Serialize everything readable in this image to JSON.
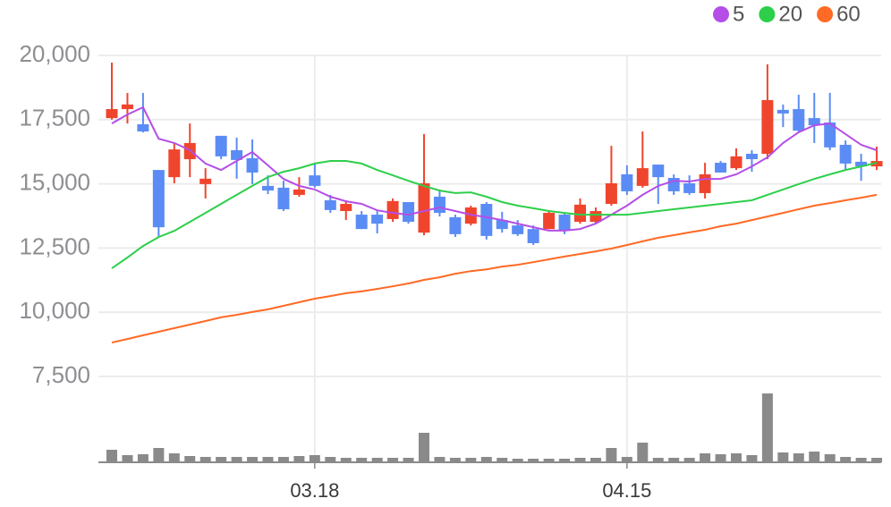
{
  "chart_data": {
    "type": "candlestick",
    "categories": [
      null,
      null,
      null,
      null,
      null,
      null,
      null,
      null,
      null,
      null,
      null,
      null,
      null,
      "03.18",
      null,
      null,
      null,
      null,
      null,
      null,
      null,
      null,
      null,
      null,
      null,
      null,
      null,
      null,
      null,
      null,
      null,
      null,
      null,
      "04.15",
      null,
      null,
      null,
      null,
      null,
      null,
      null,
      null,
      null,
      null,
      null,
      null,
      null,
      null,
      null,
      null
    ],
    "open": [
      17560,
      17910,
      17320,
      15540,
      15260,
      15960,
      14990,
      16870,
      16310,
      16000,
      14920,
      14850,
      14570,
      15330,
      14360,
      13940,
      13800,
      13800,
      13630,
      14290,
      13100,
      14500,
      13700,
      13450,
      14220,
      13590,
      13380,
      13240,
      13240,
      13800,
      13520,
      13520,
      14220,
      15370,
      14920,
      15750,
      15230,
      15020,
      14640,
      15820,
      15610,
      16170,
      16170,
      17880,
      17910,
      17560,
      17390,
      16520,
      15860,
      15680
    ],
    "high": [
      19720,
      18540,
      18540,
      15540,
      16590,
      17350,
      15610,
      16870,
      16800,
      16730,
      15330,
      15120,
      15260,
      15820,
      14570,
      14360,
      13940,
      13940,
      14430,
      14290,
      16940,
      14780,
      13800,
      14150,
      14290,
      13910,
      13590,
      13380,
      13940,
      13870,
      14430,
      14080,
      16480,
      15720,
      17040,
      15750,
      15370,
      15330,
      15820,
      15890,
      16380,
      16310,
      19650,
      18090,
      18470,
      18540,
      18540,
      16690,
      16170,
      16450
    ],
    "low": [
      17500,
      17350,
      17000,
      12930,
      15020,
      15260,
      14430,
      15960,
      15200,
      14990,
      14600,
      13940,
      14500,
      14850,
      13870,
      13590,
      13240,
      13070,
      13520,
      13450,
      13000,
      13730,
      12930,
      13380,
      12830,
      13100,
      12970,
      12620,
      13240,
      13040,
      13450,
      13450,
      14150,
      14570,
      14850,
      14220,
      14570,
      14570,
      14430,
      15440,
      15540,
      15470,
      15960,
      17210,
      17000,
      16590,
      16310,
      15540,
      15120,
      15540
    ],
    "close": [
      17910,
      18090,
      17040,
      13310,
      16340,
      16590,
      15200,
      16070,
      15930,
      15440,
      14740,
      14010,
      14780,
      14920,
      13980,
      14220,
      13240,
      13450,
      14330,
      13520,
      15020,
      13870,
      13040,
      14080,
      12970,
      13240,
      13040,
      12690,
      13870,
      13170,
      14190,
      13940,
      15020,
      14710,
      15610,
      15260,
      14710,
      14640,
      15370,
      15440,
      16070,
      15960,
      18260,
      17740,
      17070,
      17280,
      16420,
      15790,
      15680,
      15890
    ],
    "volume": [
      14,
      8,
      9,
      16,
      10,
      7,
      6,
      6,
      6,
      6,
      6,
      6,
      7,
      8,
      6,
      5,
      5,
      5,
      5,
      5,
      33,
      6,
      5,
      5,
      6,
      5,
      4,
      4,
      4,
      4,
      5,
      5,
      16,
      6,
      22,
      5,
      5,
      5,
      10,
      9,
      10,
      8,
      77,
      11,
      10,
      12,
      9,
      6,
      5,
      5
    ],
    "volume_ylim": [
      0,
      80
    ],
    "up_color": "#f0452d",
    "down_color": "#5b8cf5",
    "volume_color": "#8a8a8a",
    "series": [
      {
        "name": "5",
        "color": "#b44ee6",
        "values": [
          17350,
          17700,
          17980,
          16760,
          16590,
          16310,
          15790,
          15540,
          15890,
          16240,
          15720,
          15190,
          14920,
          14780,
          14500,
          14320,
          14220,
          13970,
          13870,
          13800,
          13940,
          14080,
          13940,
          13800,
          13700,
          13590,
          13450,
          13310,
          13180,
          13180,
          13240,
          13450,
          13800,
          14150,
          14570,
          14920,
          15120,
          15090,
          15190,
          15190,
          15370,
          15680,
          16030,
          16590,
          17010,
          17280,
          17350,
          16940,
          16520,
          16310
        ]
      },
      {
        "name": "20",
        "color": "#2dcf4a",
        "values": [
          11710,
          12130,
          12580,
          12930,
          13170,
          13520,
          13870,
          14220,
          14570,
          14920,
          15260,
          15470,
          15610,
          15790,
          15890,
          15890,
          15790,
          15540,
          15330,
          15120,
          14920,
          14740,
          14640,
          14670,
          14500,
          14290,
          14150,
          14050,
          13940,
          13870,
          13800,
          13800,
          13800,
          13800,
          13870,
          13940,
          14010,
          14080,
          14150,
          14220,
          14290,
          14360,
          14570,
          14780,
          14990,
          15190,
          15370,
          15540,
          15680,
          15820
        ]
      },
      {
        "name": "60",
        "color": "#ff6a24",
        "values": [
          8820,
          8960,
          9100,
          9240,
          9380,
          9520,
          9660,
          9800,
          9900,
          10010,
          10110,
          10250,
          10390,
          10530,
          10630,
          10740,
          10810,
          10910,
          11010,
          11120,
          11260,
          11360,
          11500,
          11600,
          11670,
          11780,
          11850,
          11950,
          12060,
          12170,
          12270,
          12370,
          12480,
          12620,
          12760,
          12900,
          13000,
          13110,
          13210,
          13350,
          13450,
          13590,
          13730,
          13870,
          14010,
          14150,
          14250,
          14360,
          14460,
          14570
        ]
      }
    ],
    "ylim": [
      7000,
      20500
    ],
    "yticks": [
      {
        "value": 7500,
        "label": "7,500"
      },
      {
        "value": 10000,
        "label": "10,000"
      },
      {
        "value": 12500,
        "label": "12,500"
      },
      {
        "value": 15000,
        "label": "15,000"
      },
      {
        "value": 17500,
        "label": "17,500"
      },
      {
        "value": 20000,
        "label": "20,000"
      }
    ],
    "grid": true
  }
}
